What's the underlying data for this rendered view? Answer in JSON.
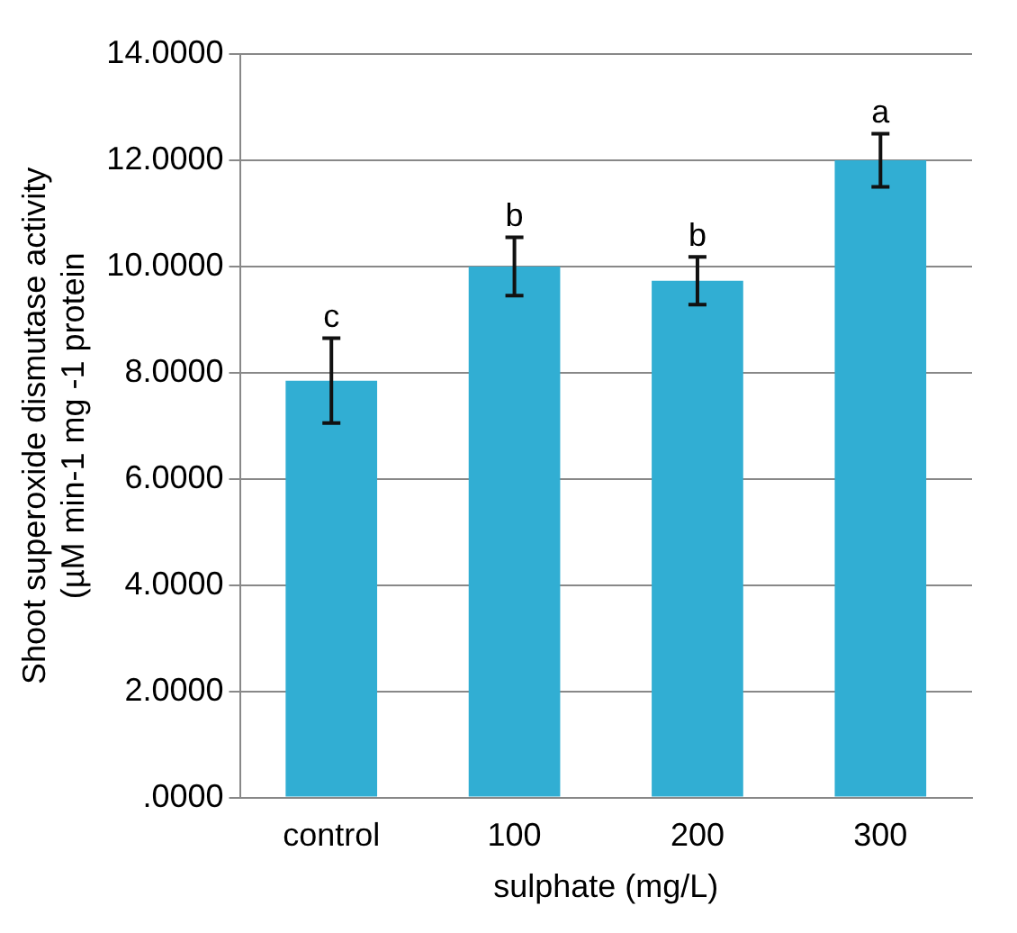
{
  "chart_data": {
    "type": "bar",
    "xlabel": "sulphate (mg/L)",
    "ylabel": "Shoot superoxide dismutase activity\n(µM min-1 mg -1 protein",
    "categories": [
      "control",
      "100",
      "200",
      "300"
    ],
    "values": [
      7.85,
      10.0,
      9.73,
      12.0
    ],
    "errors": [
      0.8,
      0.55,
      0.45,
      0.5
    ],
    "color": "#31aed3",
    "ylim": [
      0,
      14
    ],
    "yticks": [
      {
        "value": 0,
        "label": ".0000"
      },
      {
        "value": 2,
        "label": "2.0000"
      },
      {
        "value": 4,
        "label": "4.0000"
      },
      {
        "value": 6,
        "label": "6.0000"
      },
      {
        "value": 8,
        "label": "8.0000"
      },
      {
        "value": 10,
        "label": "10.0000"
      },
      {
        "value": 12,
        "label": "12.0000"
      },
      {
        "value": 14,
        "label": "14.0000"
      }
    ],
    "grid": "y",
    "legend": false,
    "annotations": [
      {
        "text": "c",
        "x": "control",
        "y": 8.65
      },
      {
        "text": "b",
        "x": "100",
        "y": 10.55
      },
      {
        "text": "b",
        "x": "200",
        "y": 10.18
      },
      {
        "text": "a",
        "x": "300",
        "y": 12.5
      }
    ]
  }
}
